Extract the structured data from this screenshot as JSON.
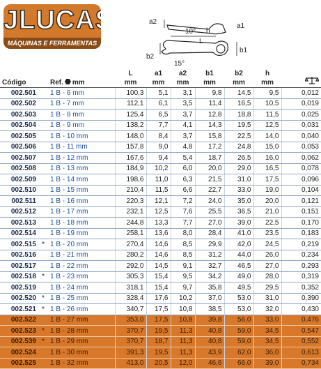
{
  "logo": {
    "name": "JLUCAS",
    "tagline": "MÁQUINAS E FERRAMENTAS"
  },
  "diagram": {
    "labels": [
      "a2",
      "10°",
      "h",
      "a1",
      "L",
      "b2",
      "b1",
      "15°"
    ]
  },
  "table": {
    "headers": [
      "Código",
      "Ref.",
      "L",
      "a1",
      "a2",
      "b1",
      "b2",
      "h"
    ],
    "units": [
      "mm",
      "mm",
      "mm",
      "mm",
      "mm",
      "mm",
      "mm"
    ],
    "rows": [
      {
        "code": "002.501",
        "ref": "1 B - 6 mm",
        "values": [
          "100,3",
          "5,1",
          "3,1",
          "9,8",
          "14,5",
          "9,5",
          "0,012"
        ]
      },
      {
        "code": "002.502",
        "ref": "1 B - 7 mm",
        "values": [
          "112,1",
          "6,1",
          "3,5",
          "11,4",
          "16,5",
          "10,5",
          "0,019"
        ]
      },
      {
        "code": "002.503",
        "ref": "1 B - 8 mm",
        "values": [
          "125,4",
          "6,5",
          "3,7",
          "12,8",
          "18,8",
          "11,5",
          "0,025"
        ]
      },
      {
        "code": "002.504",
        "ref": "1 B - 9 mm",
        "values": [
          "138,2",
          "7,7",
          "4,1",
          "14,3",
          "19,5",
          "12,5",
          "0,031"
        ]
      },
      {
        "code": "002.505",
        "ref": "1 B - 10 mm",
        "values": [
          "148,0",
          "8,4",
          "3,7",
          "15,8",
          "22,5",
          "14,0",
          "0,040"
        ]
      },
      {
        "code": "002.506",
        "ref": "1 B - 11 mm",
        "values": [
          "157,8",
          "9,0",
          "4,8",
          "17,2",
          "24,8",
          "15,0",
          "0,053"
        ]
      },
      {
        "code": "002.507",
        "ref": "1 B - 12 mm",
        "values": [
          "167,6",
          "9,4",
          "5,4",
          "18,7",
          "26,5",
          "16,0",
          "0,062"
        ]
      },
      {
        "code": "002.508",
        "ref": "1 B - 13 mm",
        "values": [
          "184,9",
          "10,2",
          "6,0",
          "20,0",
          "29,0",
          "16,5",
          "0,078"
        ]
      },
      {
        "code": "002.509",
        "ref": "1 B - 14 mm",
        "values": [
          "198,6",
          "11,0",
          "6,3",
          "21,5",
          "31,0",
          "17,5",
          "0,096"
        ]
      },
      {
        "code": "002.510",
        "ref": "1 B - 15 mm",
        "values": [
          "210,4",
          "11,5",
          "6,6",
          "22,7",
          "33,0",
          "19,0",
          "0,104"
        ]
      },
      {
        "code": "002.511",
        "ref": "1 B - 16 mm",
        "values": [
          "220,3",
          "12,1",
          "7,2",
          "24,0",
          "35,0",
          "20,0",
          "0,121"
        ]
      },
      {
        "code": "002.512",
        "ref": "1 B - 17 mm",
        "values": [
          "232,1",
          "12,5",
          "7,6",
          "25,5",
          "36,5",
          "21,0",
          "0,151"
        ]
      },
      {
        "code": "002.513",
        "ref": "1 B - 18 mm",
        "values": [
          "244,8",
          "13,3",
          "7,7",
          "27,0",
          "39,0",
          "22,5",
          "0,170"
        ]
      },
      {
        "code": "002.514",
        "ref": "1 B - 19 mm",
        "values": [
          "258,1",
          "13,6",
          "8,0",
          "28,4",
          "41,0",
          "23,5",
          "0,183"
        ]
      },
      {
        "code": "002.515",
        "star": "*",
        "ref": "1 B - 20 mm",
        "values": [
          "270,4",
          "14,6",
          "8,5",
          "29,9",
          "42,0",
          "24,5",
          "0,219"
        ]
      },
      {
        "code": "002.516",
        "ref": "1 B - 21 mm",
        "values": [
          "280,2",
          "14,6",
          "8,5",
          "31,2",
          "44,0",
          "26,0",
          "0,234"
        ]
      },
      {
        "code": "002.517",
        "ref": "1 B - 22 mm",
        "values": [
          "292,0",
          "14,5",
          "9,1",
          "32,7",
          "46,5",
          "27,0",
          "0,293"
        ]
      },
      {
        "code": "002.518",
        "star": "*",
        "ref": "1 B - 23 mm",
        "values": [
          "305,3",
          "15,4",
          "9,5",
          "34,2",
          "49,0",
          "28,0",
          "0,319"
        ]
      },
      {
        "code": "002.519",
        "ref": "1 B - 24 mm",
        "values": [
          "318,1",
          "15,4",
          "9,7",
          "35,8",
          "49,5",
          "29,5",
          "0,352"
        ]
      },
      {
        "code": "002.520",
        "star": "*",
        "ref": "1 B - 25 mm",
        "values": [
          "328,4",
          "17,6",
          "10,2",
          "37,0",
          "53,0",
          "31,0",
          "0,390"
        ]
      },
      {
        "code": "002.521",
        "star": "*",
        "ref": "1 B - 26 mm",
        "values": [
          "340,7",
          "17,5",
          "10,8",
          "38,5",
          "53,0",
          "32,0",
          "0,430"
        ]
      },
      {
        "code": "002.522",
        "ref": "1 B - 27 mm",
        "highlight": true,
        "values": [
          "353,0",
          "17,5",
          "10,8",
          "39,8",
          "56,0",
          "33,0",
          "0,476"
        ]
      },
      {
        "code": "002.523",
        "star": "*",
        "ref": "1 B - 28 mm",
        "highlight": true,
        "values": [
          "370,7",
          "19,5",
          "11,3",
          "40,8",
          "59,0",
          "34,5",
          "0,547"
        ]
      },
      {
        "code": "002.539",
        "star": "*",
        "ref": "1 B - 29 mm",
        "highlight": true,
        "values": [
          "370,7",
          "18,7",
          "11,3",
          "40,8",
          "59,0",
          "34,5",
          "0,552"
        ]
      },
      {
        "code": "002.524",
        "ref": "1 B - 30 mm",
        "highlight": true,
        "values": [
          "391,3",
          "19,5",
          "11,3",
          "43,9",
          "62,0",
          "36,0",
          "0,613"
        ]
      },
      {
        "code": "002.525",
        "ref": "1 B - 32 mm",
        "highlight": true,
        "values": [
          "413,0",
          "20,5",
          "12,0",
          "46,6",
          "66,0",
          "39,0",
          "0,734"
        ]
      }
    ]
  }
}
